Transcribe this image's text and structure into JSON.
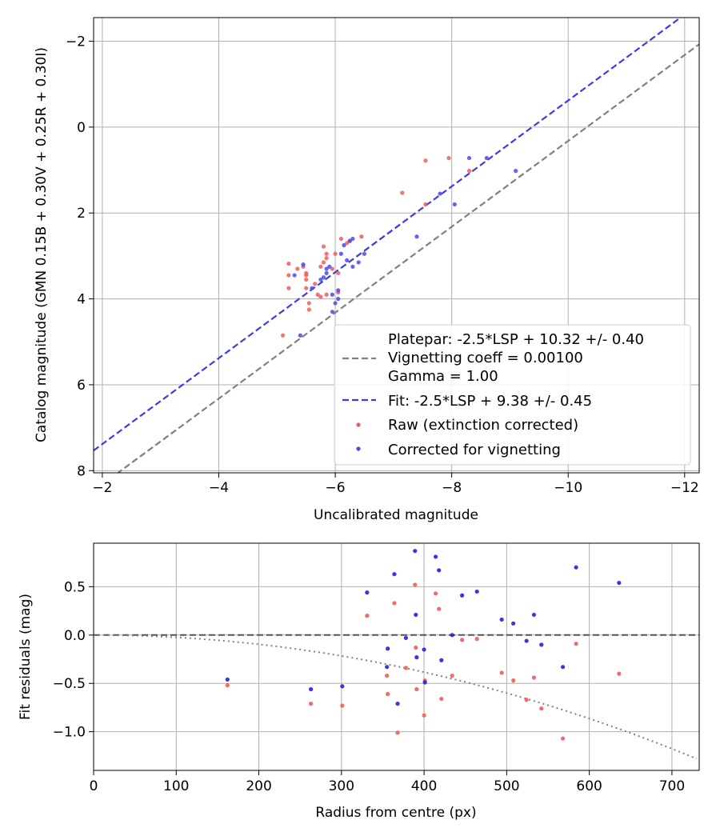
{
  "chart_data": [
    {
      "type": "scatter",
      "xlabel": "Uncalibrated magnitude",
      "ylabel": "Catalog magnitude (GMN 0.15B + 0.30V + 0.25R + 0.30I)",
      "xlim": [
        -1.85,
        -12.25
      ],
      "ylim": [
        8.05,
        -2.55
      ],
      "x_inverted": true,
      "y_inverted": true,
      "xticks": [
        -2,
        -4,
        -6,
        -8,
        -10,
        -12
      ],
      "yticks": [
        -2,
        0,
        2,
        4,
        6,
        8
      ],
      "xtick_labels": [
        "−2",
        "−4",
        "−6",
        "−8",
        "−10",
        "−12"
      ],
      "ytick_labels": [
        "−2",
        "0",
        "2",
        "4",
        "6",
        "8"
      ],
      "grid": true,
      "legend_position": "lower-right",
      "lines": [
        {
          "name": "Platepar: -2.5*LSP + 10.32 +/- 0.40",
          "name_lines": [
            "Platepar: -2.5*LSP + 10.32 +/- 0.40",
            "Vignetting coeff = 0.00100",
            "Gamma = 1.00"
          ],
          "style": "dashed",
          "color": "#808080",
          "slope": 1.0,
          "intercept": 10.32
        },
        {
          "name": "Fit: -2.5*LSP + 9.38 +/- 0.45",
          "style": "dashed",
          "color": "#3a3aee",
          "slope": 1.0,
          "intercept": 9.38
        }
      ],
      "series": [
        {
          "name": "Raw (extinction corrected)",
          "color": "#f25a5a",
          "points": [
            [
              -5.1,
              4.85
            ],
            [
              -5.2,
              3.18
            ],
            [
              -5.2,
              3.45
            ],
            [
              -5.2,
              3.75
            ],
            [
              -5.35,
              3.3
            ],
            [
              -5.45,
              3.25
            ],
            [
              -5.5,
              3.45
            ],
            [
              -5.5,
              3.55
            ],
            [
              -5.5,
              3.75
            ],
            [
              -5.55,
              4.1
            ],
            [
              -5.55,
              4.25
            ],
            [
              -5.5,
              3.4
            ],
            [
              -5.65,
              3.65
            ],
            [
              -5.7,
              3.9
            ],
            [
              -5.75,
              3.95
            ],
            [
              -5.75,
              3.25
            ],
            [
              -5.8,
              3.15
            ],
            [
              -5.8,
              2.78
            ],
            [
              -5.85,
              3.05
            ],
            [
              -5.85,
              2.95
            ],
            [
              -5.85,
              3.9
            ],
            [
              -5.95,
              3.3
            ],
            [
              -6.0,
              2.95
            ],
            [
              -6.05,
              3.4
            ],
            [
              -6.05,
              3.85
            ],
            [
              -6.1,
              2.6
            ],
            [
              -6.2,
              2.7
            ],
            [
              -6.25,
              2.65
            ],
            [
              -6.45,
              2.55
            ],
            [
              -7.15,
              1.53
            ],
            [
              -7.55,
              0.78
            ],
            [
              -7.55,
              1.8
            ],
            [
              -7.95,
              0.72
            ],
            [
              -8.3,
              1.02
            ]
          ]
        },
        {
          "name": "Corrected for vignetting",
          "color": "#4a4af0",
          "points": [
            [
              -5.3,
              3.45
            ],
            [
              -5.4,
              4.85
            ],
            [
              -5.45,
              3.2
            ],
            [
              -5.6,
              3.75
            ],
            [
              -5.75,
              3.55
            ],
            [
              -5.8,
              3.5
            ],
            [
              -5.85,
              3.4
            ],
            [
              -5.85,
              3.3
            ],
            [
              -5.9,
              3.25
            ],
            [
              -5.95,
              3.9
            ],
            [
              -5.95,
              4.3
            ],
            [
              -6.0,
              4.1
            ],
            [
              -6.05,
              3.8
            ],
            [
              -6.05,
              4.0
            ],
            [
              -6.1,
              2.95
            ],
            [
              -6.15,
              2.75
            ],
            [
              -6.2,
              3.1
            ],
            [
              -6.25,
              2.65
            ],
            [
              -6.3,
              3.25
            ],
            [
              -6.3,
              2.6
            ],
            [
              -6.4,
              3.15
            ],
            [
              -6.5,
              2.95
            ],
            [
              -7.4,
              2.55
            ],
            [
              -7.8,
              1.55
            ],
            [
              -8.05,
              1.8
            ],
            [
              -8.3,
              0.72
            ],
            [
              -8.6,
              0.72
            ],
            [
              -9.1,
              1.02
            ]
          ]
        }
      ]
    },
    {
      "type": "scatter",
      "xlabel": "Radius from centre (px)",
      "ylabel": "Fit residuals (mag)",
      "xlim": [
        0,
        733
      ],
      "ylim": [
        -1.4,
        0.95
      ],
      "xticks": [
        0,
        100,
        200,
        300,
        400,
        500,
        600,
        700
      ],
      "yticks": [
        0.5,
        0.0,
        -0.5,
        -1.0
      ],
      "xtick_labels": [
        "0",
        "100",
        "200",
        "300",
        "400",
        "500",
        "600",
        "700"
      ],
      "ytick_labels": [
        "0.5",
        "0.0",
        "−0.5",
        "−1.0"
      ],
      "grid": true,
      "reference_lines": [
        {
          "style": "dashed",
          "color": "#555555",
          "y": 0
        },
        {
          "style": "dotted",
          "color": "#808080",
          "curve": "-coeff*r^2",
          "coeff": 2.4e-06
        }
      ],
      "series": [
        {
          "name": "Raw (extinction corrected)",
          "color": "#f25a5a",
          "points": [
            [
              162,
              -0.52
            ],
            [
              263,
              -0.71
            ],
            [
              301,
              -0.73
            ],
            [
              331,
              0.2
            ],
            [
              355,
              -0.42
            ],
            [
              356,
              -0.61
            ],
            [
              364,
              0.33
            ],
            [
              368,
              -1.01
            ],
            [
              378,
              -0.34
            ],
            [
              389,
              0.52
            ],
            [
              390,
              -0.13
            ],
            [
              391,
              -0.56
            ],
            [
              400,
              -0.83
            ],
            [
              401,
              -0.47
            ],
            [
              414,
              0.43
            ],
            [
              418,
              0.27
            ],
            [
              421,
              -0.66
            ],
            [
              434,
              -0.42
            ],
            [
              446,
              -0.05
            ],
            [
              464,
              -0.04
            ],
            [
              494,
              -0.39
            ],
            [
              508,
              -0.47
            ],
            [
              524,
              -0.67
            ],
            [
              533,
              -0.44
            ],
            [
              542,
              -0.76
            ],
            [
              568,
              -1.07
            ],
            [
              584,
              -0.09
            ],
            [
              636,
              -0.4
            ]
          ]
        },
        {
          "name": "Corrected for vignetting",
          "color": "#2020e8",
          "points": [
            [
              162,
              -0.46
            ],
            [
              263,
              -0.56
            ],
            [
              301,
              -0.53
            ],
            [
              331,
              0.44
            ],
            [
              355,
              -0.33
            ],
            [
              356,
              -0.14
            ],
            [
              364,
              0.63
            ],
            [
              368,
              -0.71
            ],
            [
              378,
              -0.03
            ],
            [
              389,
              0.87
            ],
            [
              390,
              0.21
            ],
            [
              391,
              -0.23
            ],
            [
              400,
              -0.15
            ],
            [
              401,
              -0.49
            ],
            [
              414,
              0.81
            ],
            [
              418,
              0.67
            ],
            [
              421,
              -0.26
            ],
            [
              434,
              0.0
            ],
            [
              446,
              0.41
            ],
            [
              464,
              0.45
            ],
            [
              494,
              0.16
            ],
            [
              508,
              0.12
            ],
            [
              524,
              -0.06
            ],
            [
              533,
              0.21
            ],
            [
              542,
              -0.1
            ],
            [
              568,
              -0.33
            ],
            [
              584,
              0.7
            ],
            [
              636,
              0.54
            ]
          ]
        }
      ]
    }
  ]
}
